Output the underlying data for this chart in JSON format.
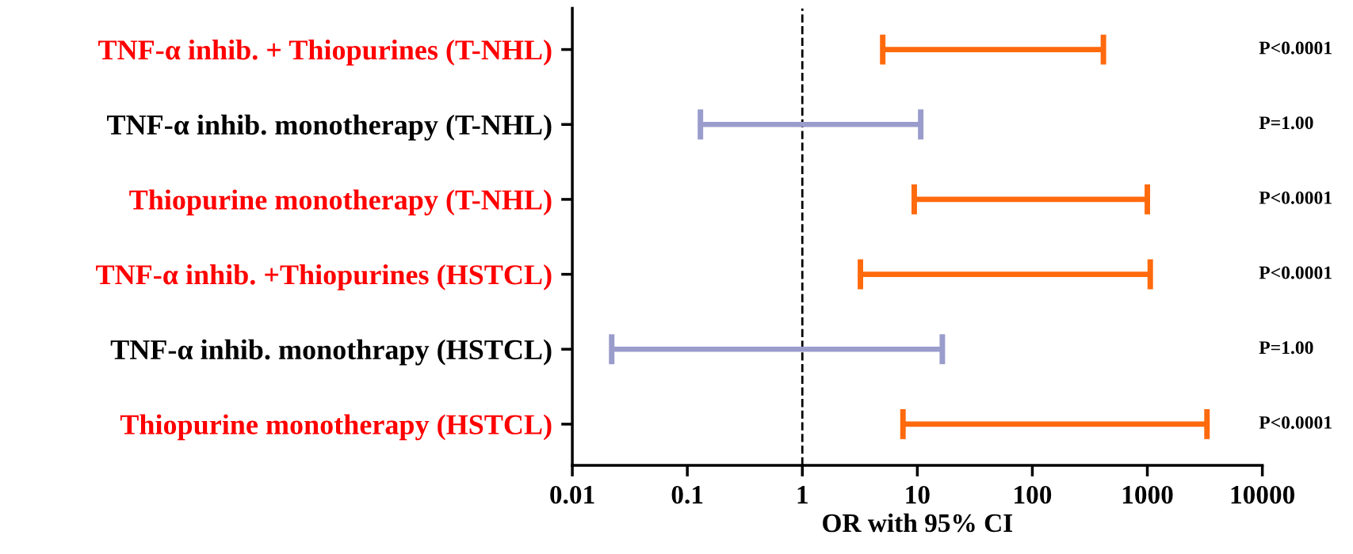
{
  "chart_data": {
    "type": "bar",
    "orientation": "horizontal",
    "xlabel": "OR with 95% CI",
    "categories": [
      "TNF-α inhib. + Thiopurines (T-NHL)",
      "TNF-α inhib. monotherapy (T-NHL)",
      "Thiopurine monotherapy (T-NHL)",
      "TNF-α inhib. +Thiopurines (HSTCL)",
      "TNF-α inhib. monothrapy (HSTCL)",
      "Thiopurine monotherapy (HSTCL)"
    ],
    "base": [
      5,
      0.13,
      9.4,
      3.2,
      0.022,
      7.5
    ],
    "values": [
      410,
      10.57,
      990.6,
      1056.8,
      16.478,
      3292.5
    ],
    "colors": [
      "#ff6a0d",
      "#9a9ccc",
      "#ff6a0d",
      "#ff6a0d",
      "#9a9ccc",
      "#ff6a0d"
    ],
    "log": "x",
    "xlim": [
      0.01,
      10000
    ],
    "xticks": [
      0.01,
      0.1,
      1,
      10,
      100,
      1000,
      10000
    ],
    "ref_lines": [
      {
        "axis": "x",
        "value": 1,
        "color": "#000000",
        "line_style": "dashed"
      }
    ],
    "annotations": [
      "P<0.0001",
      "P=1.00",
      "P<0.0001",
      "P<0.0001",
      "P=1.00",
      "P<0.0001"
    ],
    "grid": false,
    "legend": false
  }
}
